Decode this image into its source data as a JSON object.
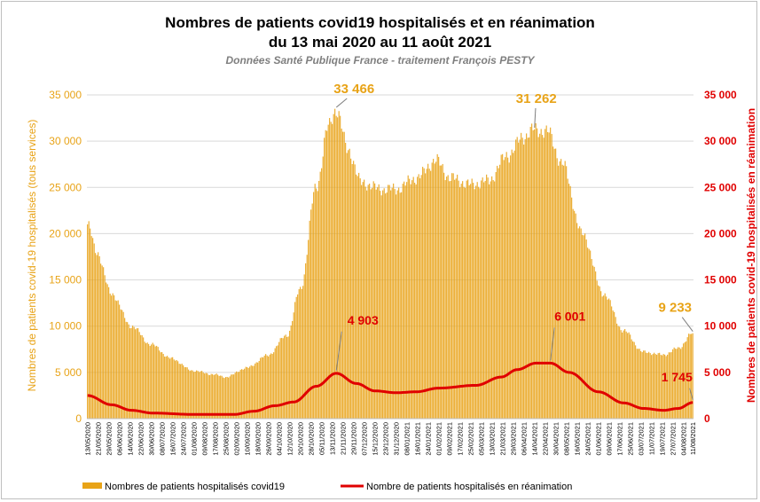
{
  "header": {
    "title_line1": "Nombres de patients covid19 hospitalisés et en réanimation",
    "title_line2": "du 13 mai 2020 au 11 août 2021",
    "subtitle": "Données Santé Publique France - traitement François PESTY"
  },
  "colors": {
    "bars": "#e8a317",
    "line": "#e00000",
    "left_axis": "#e8a317",
    "right_axis": "#e00000"
  },
  "chart_data": {
    "type": "bar",
    "x_start": "13/05/2020",
    "x_end": "11/08/2021",
    "ylabel_left": "Nombres de patients covid-19 hospitalisés (tous services)",
    "ylabel_right": "Nombres de patients covid-19 hospitalisés en réanimation",
    "ylim": [
      0,
      35000
    ],
    "yticks": [
      "0",
      "5 000",
      "10 000",
      "15 000",
      "20 000",
      "25 000",
      "30 000",
      "35 000"
    ],
    "grid": true,
    "legend_position": "bottom",
    "x_tick_labels": [
      "13/05/2020",
      "21/05/2020",
      "29/05/2020",
      "06/06/2020",
      "14/06/2020",
      "22/06/2020",
      "30/06/2020",
      "08/07/2020",
      "16/07/2020",
      "24/07/2020",
      "01/08/2020",
      "09/08/2020",
      "17/08/2020",
      "25/08/2020",
      "02/09/2020",
      "10/09/2020",
      "18/09/2020",
      "26/09/2020",
      "04/10/2020",
      "12/10/2020",
      "20/10/2020",
      "28/10/2020",
      "05/11/2020",
      "13/11/2020",
      "21/11/2020",
      "29/11/2020",
      "07/12/2020",
      "15/12/2020",
      "23/12/2020",
      "31/12/2020",
      "08/01/2021",
      "16/01/2021",
      "24/01/2021",
      "01/02/2021",
      "09/02/2021",
      "17/02/2021",
      "25/02/2021",
      "05/03/2021",
      "13/03/2021",
      "21/03/2021",
      "29/03/2021",
      "06/04/2021",
      "14/04/2021",
      "22/04/2021",
      "30/04/2021",
      "08/05/2021",
      "16/05/2021",
      "24/05/2021",
      "01/06/2021",
      "09/06/2021",
      "17/06/2021",
      "25/06/2021",
      "03/07/2021",
      "11/07/2021",
      "19/07/2021",
      "27/07/2021",
      "04/08/2021",
      "11/08/2021"
    ],
    "series": [
      {
        "name": "Nombres de patients hospitalisés covid19",
        "kind": "bar",
        "anchors": [
          [
            "13/05/2020",
            21000
          ],
          [
            "20/05/2020",
            18000
          ],
          [
            "31/05/2020",
            13500
          ],
          [
            "15/06/2020",
            10000
          ],
          [
            "30/06/2020",
            8000
          ],
          [
            "15/07/2020",
            6500
          ],
          [
            "31/07/2020",
            5200
          ],
          [
            "15/08/2020",
            4800
          ],
          [
            "25/08/2020",
            4500
          ],
          [
            "10/09/2020",
            5500
          ],
          [
            "25/09/2020",
            6800
          ],
          [
            "10/10/2020",
            9000
          ],
          [
            "20/10/2020",
            14000
          ],
          [
            "01/11/2020",
            25000
          ],
          [
            "10/11/2020",
            31500
          ],
          [
            "16/11/2020",
            33466
          ],
          [
            "25/11/2020",
            29000
          ],
          [
            "05/12/2020",
            25500
          ],
          [
            "20/12/2020",
            24800
          ],
          [
            "31/12/2020",
            24800
          ],
          [
            "15/01/2021",
            26000
          ],
          [
            "30/01/2021",
            27900
          ],
          [
            "10/02/2021",
            26000
          ],
          [
            "25/02/2021",
            25300
          ],
          [
            "10/03/2021",
            25700
          ],
          [
            "25/03/2021",
            28500
          ],
          [
            "06/04/2021",
            30500
          ],
          [
            "14/04/2021",
            31262
          ],
          [
            "24/04/2021",
            31000
          ],
          [
            "05/05/2021",
            27500
          ],
          [
            "20/05/2021",
            20000
          ],
          [
            "05/06/2021",
            13500
          ],
          [
            "20/06/2021",
            9500
          ],
          [
            "05/07/2021",
            7200
          ],
          [
            "20/07/2021",
            6900
          ],
          [
            "31/07/2021",
            7600
          ],
          [
            "11/08/2021",
            9233
          ]
        ],
        "annotations": [
          {
            "label": "33 466",
            "date": "16/11/2020",
            "value": 33466
          },
          {
            "label": "31 262",
            "date": "14/04/2021",
            "value": 31262
          },
          {
            "label": "9 233",
            "date": "11/08/2021",
            "value": 9233
          }
        ]
      },
      {
        "name": "Nombre de patients hospitalisés en réanimation",
        "kind": "line",
        "anchors": [
          [
            "13/05/2020",
            2500
          ],
          [
            "31/05/2020",
            1500
          ],
          [
            "15/06/2020",
            900
          ],
          [
            "01/07/2020",
            600
          ],
          [
            "01/08/2020",
            450
          ],
          [
            "31/08/2020",
            450
          ],
          [
            "15/09/2020",
            800
          ],
          [
            "01/10/2020",
            1400
          ],
          [
            "15/10/2020",
            1800
          ],
          [
            "01/11/2020",
            3500
          ],
          [
            "16/11/2020",
            4903
          ],
          [
            "01/12/2020",
            3800
          ],
          [
            "15/12/2020",
            3000
          ],
          [
            "31/12/2020",
            2800
          ],
          [
            "15/01/2021",
            2900
          ],
          [
            "01/02/2021",
            3300
          ],
          [
            "01/03/2021",
            3600
          ],
          [
            "20/03/2021",
            4500
          ],
          [
            "01/04/2021",
            5300
          ],
          [
            "15/04/2021",
            6000
          ],
          [
            "26/04/2021",
            6001
          ],
          [
            "10/05/2021",
            5000
          ],
          [
            "01/06/2021",
            2900
          ],
          [
            "20/06/2021",
            1700
          ],
          [
            "05/07/2021",
            1100
          ],
          [
            "20/07/2021",
            900
          ],
          [
            "31/07/2021",
            1100
          ],
          [
            "11/08/2021",
            1745
          ]
        ],
        "annotations": [
          {
            "label": "4 903",
            "date": "16/11/2020",
            "value": 4903
          },
          {
            "label": "6 001",
            "date": "26/04/2021",
            "value": 6001
          },
          {
            "label": "1 745",
            "date": "11/08/2021",
            "value": 1745
          }
        ]
      }
    ]
  }
}
